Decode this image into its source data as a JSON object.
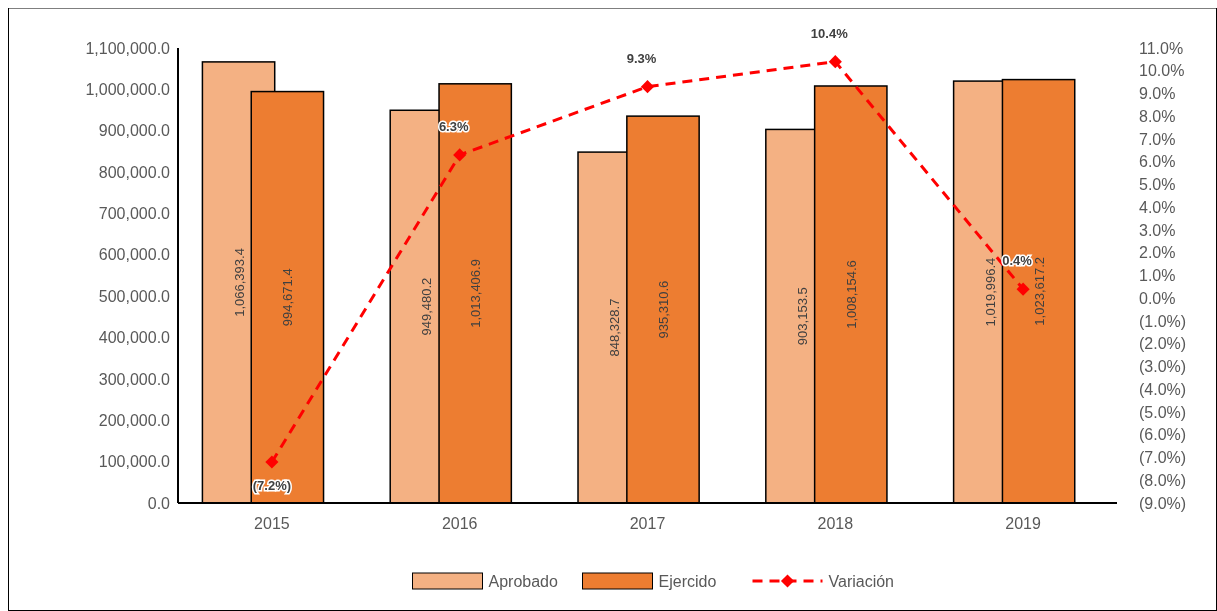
{
  "chart_data": {
    "type": "bar",
    "categories": [
      "2015",
      "2016",
      "2017",
      "2018",
      "2019"
    ],
    "series": [
      {
        "name": "Aprobado",
        "color": "#f4b183",
        "values": [
          1066393.4,
          949480.2,
          848328.7,
          903153.5,
          1019996.4
        ],
        "value_labels": [
          "1,066,393.4",
          "949,480.2",
          "848,328.7",
          "903,153.5",
          "1,019,996.4"
        ]
      },
      {
        "name": "Ejercido",
        "color": "#ed7d31",
        "values": [
          994671.4,
          1013406.9,
          935310.6,
          1008154.6,
          1023617.2
        ],
        "value_labels": [
          "994,671.4",
          "1,013,406.9",
          "935,310.6",
          "1,008,154.6",
          "1,023,617.2"
        ]
      },
      {
        "name": "Variación",
        "type": "line",
        "axis": "y2",
        "color": "#ff0000",
        "values": [
          -7.2,
          6.3,
          9.3,
          10.4,
          0.4
        ],
        "value_labels": [
          "(7.2%)",
          "6.3%",
          "9.3%",
          "10.4%",
          "0.4%"
        ]
      }
    ],
    "ylim": [
      0,
      1100000
    ],
    "yticks": [
      {
        "value": 0,
        "label": "0.0"
      },
      {
        "value": 100000,
        "label": "100,000.0"
      },
      {
        "value": 200000,
        "label": "200,000.0"
      },
      {
        "value": 300000,
        "label": "300,000.0"
      },
      {
        "value": 400000,
        "label": "400,000.0"
      },
      {
        "value": 500000,
        "label": "500,000.0"
      },
      {
        "value": 600000,
        "label": "600,000.0"
      },
      {
        "value": 700000,
        "label": "700,000.0"
      },
      {
        "value": 800000,
        "label": "800,000.0"
      },
      {
        "value": 900000,
        "label": "900,000.0"
      },
      {
        "value": 1000000,
        "label": "1,000,000.0"
      },
      {
        "value": 1100000,
        "label": "1,100,000.0"
      }
    ],
    "y2lim": [
      -9,
      11
    ],
    "y2ticks": [
      {
        "value": -9,
        "label": "(9.0%)"
      },
      {
        "value": -8,
        "label": "(8.0%)"
      },
      {
        "value": -7,
        "label": "(7.0%)"
      },
      {
        "value": -6,
        "label": "(6.0%)"
      },
      {
        "value": -5,
        "label": "(5.0%)"
      },
      {
        "value": -4,
        "label": "(4.0%)"
      },
      {
        "value": -3,
        "label": "(3.0%)"
      },
      {
        "value": -2,
        "label": "(2.0%)"
      },
      {
        "value": -1,
        "label": "(1.0%)"
      },
      {
        "value": 0,
        "label": "0.0%"
      },
      {
        "value": 1,
        "label": "1.0%"
      },
      {
        "value": 2,
        "label": "2.0%"
      },
      {
        "value": 3,
        "label": "3.0%"
      },
      {
        "value": 4,
        "label": "4.0%"
      },
      {
        "value": 5,
        "label": "5.0%"
      },
      {
        "value": 6,
        "label": "6.0%"
      },
      {
        "value": 7,
        "label": "7.0%"
      },
      {
        "value": 8,
        "label": "8.0%"
      },
      {
        "value": 9,
        "label": "9.0%"
      },
      {
        "value": 10,
        "label": "10.0%"
      },
      {
        "value": 11,
        "label": "11.0%"
      }
    ],
    "marker": "diamond",
    "line_style": "dashed",
    "legend": "bottom",
    "grid": false
  }
}
